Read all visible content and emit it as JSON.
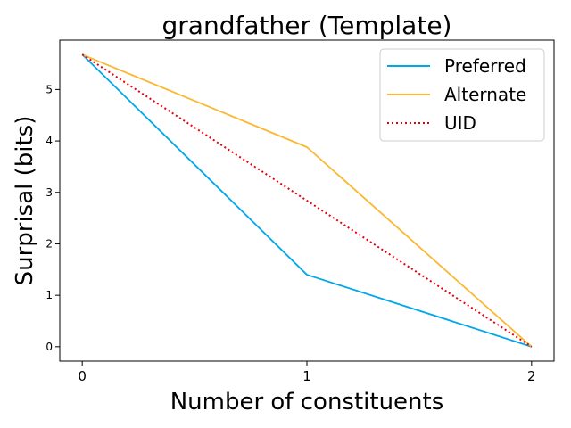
{
  "chart_data": {
    "type": "line",
    "title": "grandfather (Template)",
    "xlabel": "Number of constituents",
    "ylabel": "Surprisal (bits)",
    "x": [
      0,
      1,
      2
    ],
    "xticks": [
      "0",
      "1",
      "2"
    ],
    "yticks": [
      "0",
      "1",
      "2",
      "3",
      "4",
      "5"
    ],
    "xlim": [
      -0.1,
      2.1
    ],
    "ylim": [
      -0.28,
      5.96
    ],
    "grid": false,
    "legend_position": "top-right",
    "series": [
      {
        "name": "Preferred",
        "values": [
          5.68,
          1.4,
          0.0
        ],
        "color": "#00a8e8",
        "style": "solid"
      },
      {
        "name": "Alternate",
        "values": [
          5.68,
          3.88,
          0.0
        ],
        "color": "#fbb731",
        "style": "solid"
      },
      {
        "name": "UID",
        "values": [
          5.68,
          2.84,
          0.0
        ],
        "color": "#e8000b",
        "style": "dotted"
      }
    ]
  }
}
